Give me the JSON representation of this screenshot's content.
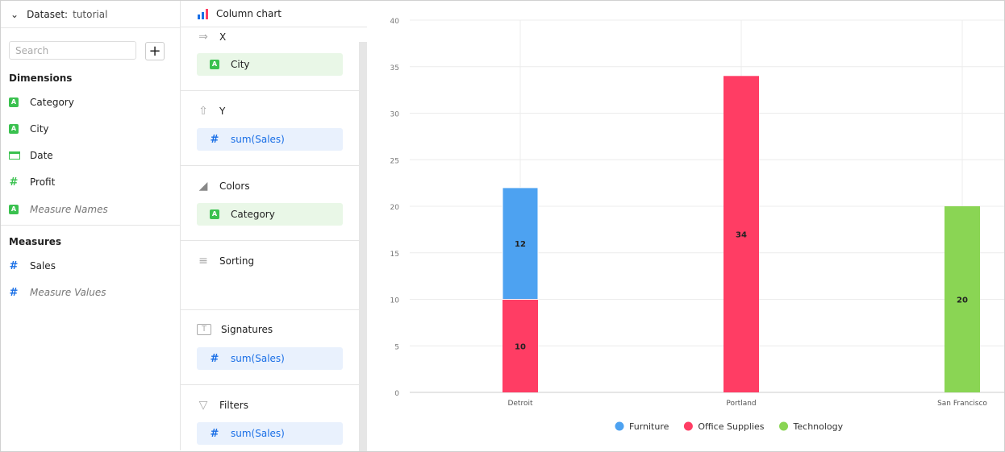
{
  "dataset": {
    "label": "Dataset:",
    "name": "tutorial"
  },
  "search": {
    "placeholder": "Search"
  },
  "dimensions": {
    "title": "Dimensions",
    "items": [
      {
        "label": "Category",
        "type": "string"
      },
      {
        "label": "City",
        "type": "string"
      },
      {
        "label": "Date",
        "type": "date"
      },
      {
        "label": "Profit",
        "type": "number"
      },
      {
        "label": "Measure Names",
        "type": "string"
      }
    ]
  },
  "measures": {
    "title": "Measures",
    "items": [
      {
        "label": "Sales",
        "type": "number"
      },
      {
        "label": "Measure Values",
        "type": "number"
      }
    ]
  },
  "visualization": {
    "type": "Column chart"
  },
  "slots": {
    "x": {
      "title": "X",
      "field": "City"
    },
    "y": {
      "title": "Y",
      "field": "sum(Sales)"
    },
    "colors": {
      "title": "Colors",
      "field": "Category"
    },
    "sorting": {
      "title": "Sorting"
    },
    "signatures": {
      "title": "Signatures",
      "field": "sum(Sales)"
    },
    "filters": {
      "title": "Filters",
      "field": "sum(Sales)"
    }
  },
  "chart_data": {
    "type": "bar",
    "stacked": true,
    "categories": [
      "Detroit",
      "Portland",
      "San Francisco"
    ],
    "series": [
      {
        "name": "Office Supplies",
        "color": "#ff3d64",
        "values": [
          10,
          34,
          null
        ]
      },
      {
        "name": "Furniture",
        "color": "#4da2f1",
        "values": [
          12,
          null,
          null
        ]
      },
      {
        "name": "Technology",
        "color": "#8ad554",
        "values": [
          null,
          null,
          20
        ]
      }
    ],
    "legend_order": [
      "Furniture",
      "Office Supplies",
      "Technology"
    ],
    "yticks": [
      0,
      5,
      10,
      15,
      20,
      25,
      30,
      35,
      40
    ],
    "ylim": [
      0,
      40
    ],
    "grid": true,
    "data_labels": true,
    "legend": "bottom"
  }
}
